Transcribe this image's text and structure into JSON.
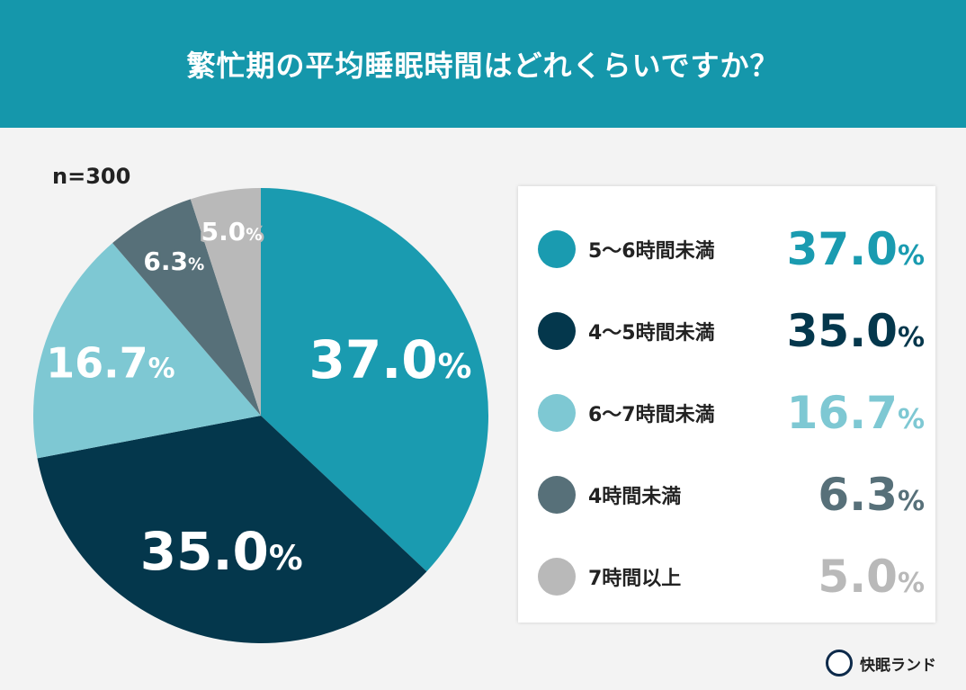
{
  "title": "繁忙期の平均睡眠時間はどれくらいですか？",
  "sample": "n=300",
  "brand": "快眠ランド",
  "chart_data": {
    "type": "pie",
    "title": "繁忙期の平均睡眠時間はどれくらいですか？",
    "unit": "%",
    "categories": [
      "5〜6時間未満",
      "4〜5時間未満",
      "6〜7時間未満",
      "4時間未満",
      "7時間以上"
    ],
    "values": [
      37.0,
      35.0,
      16.7,
      6.3,
      5.0
    ],
    "labels": [
      "37.0",
      "35.0",
      "16.7",
      "6.3",
      "5.0"
    ],
    "colors": [
      "#1a9bb0",
      "#04374c",
      "#7ec8d3",
      "#577079",
      "#b9b9b9"
    ],
    "start": "top",
    "direction": "clockwise",
    "legend": "right"
  }
}
